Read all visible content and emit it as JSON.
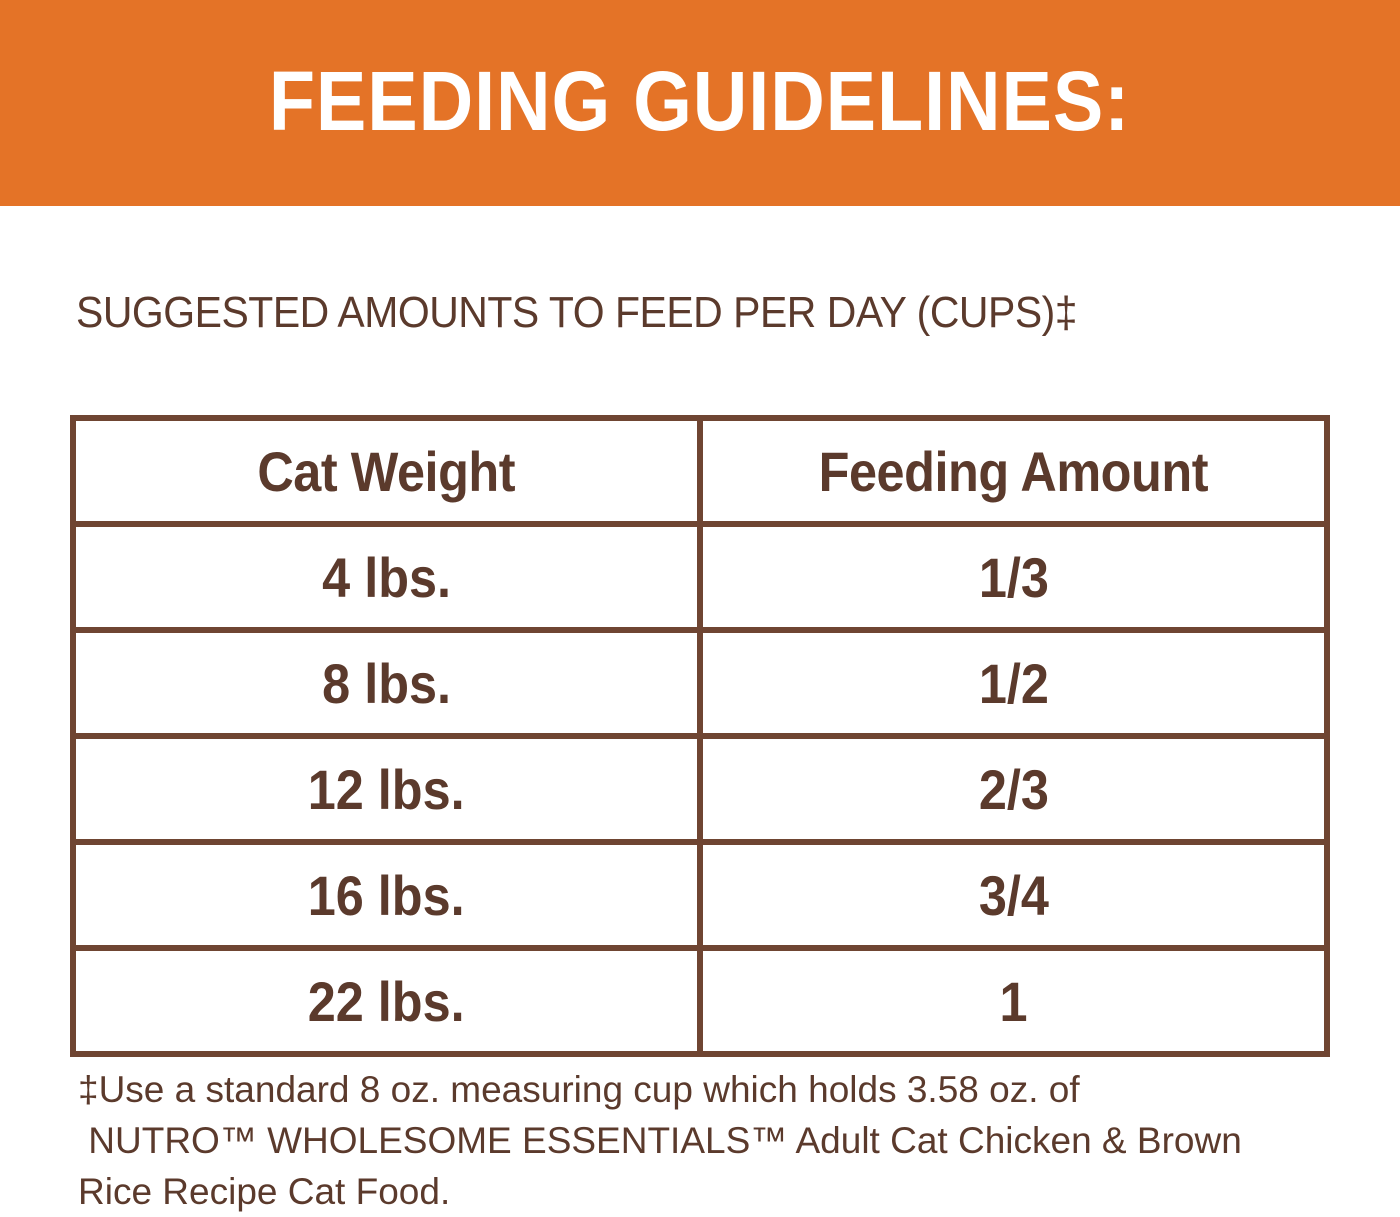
{
  "colors": {
    "banner_bg": "#e47327",
    "text_brown": "#5b3a2c",
    "table_border": "#6f4532"
  },
  "header": {
    "title": "FEEDING GUIDELINES:"
  },
  "subtitle": "SUGGESTED AMOUNTS TO FEED PER DAY (CUPS)‡",
  "table": {
    "columns": [
      "Cat Weight",
      "Feeding Amount"
    ],
    "rows": [
      [
        "4 lbs.",
        "1/3"
      ],
      [
        "8 lbs.",
        "1/2"
      ],
      [
        "12 lbs.",
        "2/3"
      ],
      [
        "16 lbs.",
        "3/4"
      ],
      [
        "22 lbs.",
        "1"
      ]
    ]
  },
  "footnote": {
    "line1": "‡Use a standard 8 oz. measuring cup which holds 3.58 oz. of",
    "line2": " NUTRO™ WHOLESOME ESSENTIALS™ Adult Cat Chicken & Brown",
    "line3": "Rice Recipe Cat Food."
  }
}
